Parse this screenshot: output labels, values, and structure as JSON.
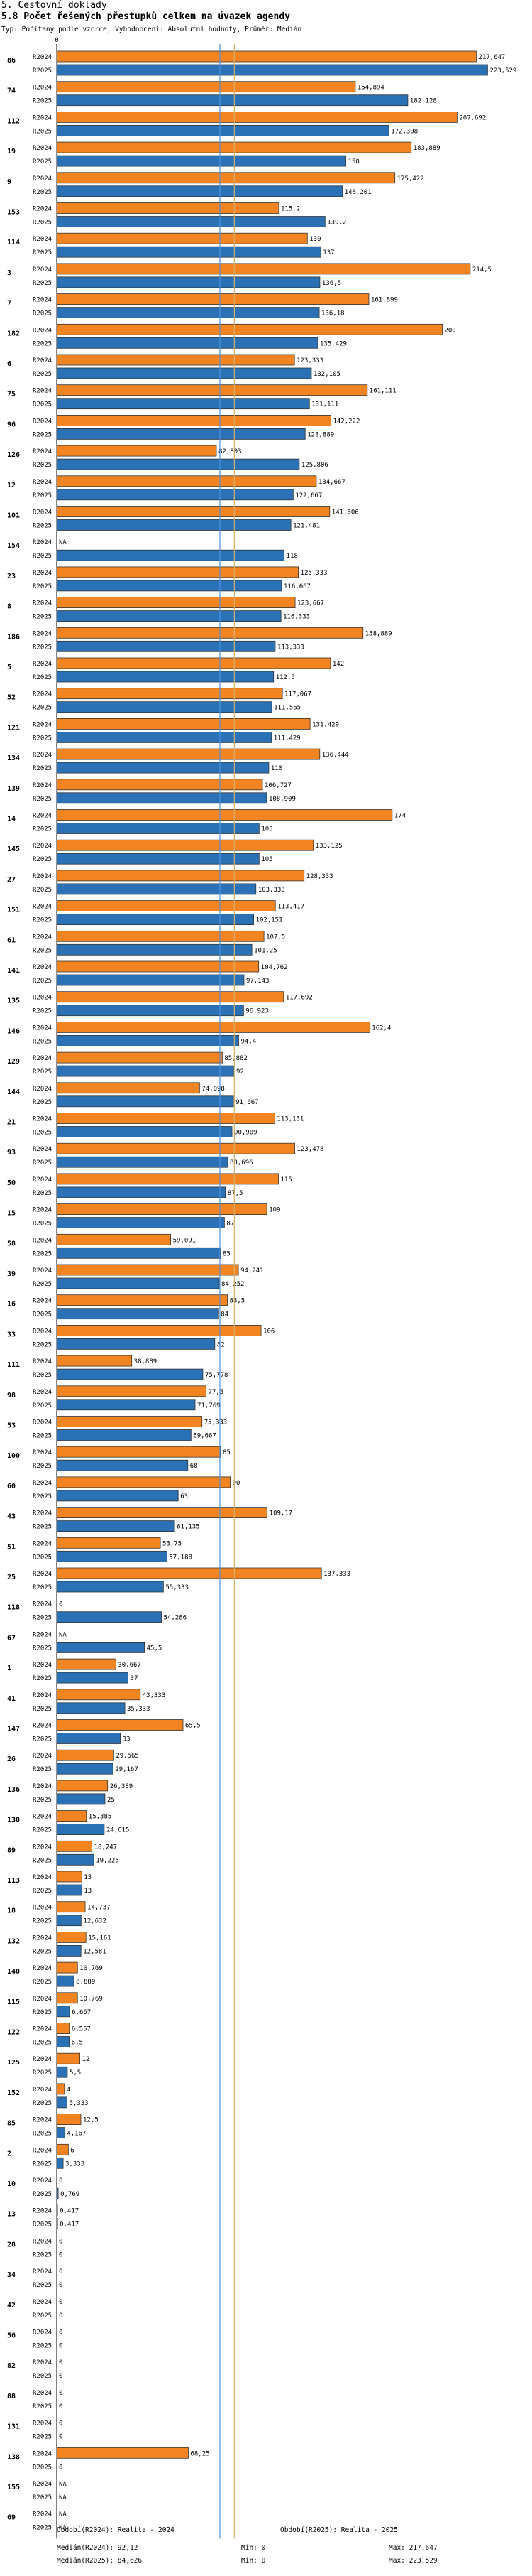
{
  "section_title": "5. Cestovní doklady",
  "chart_data": {
    "type": "bar",
    "orientation": "horizontal",
    "title": "5.8 Počet řešených přestupků celkem na úvazek agendy",
    "subtitle": "Typ: Počítaný podle vzorce, Vyhodnocení: Absolutní hodnoty, Průměr: Medián",
    "xlim": [
      0,
      230
    ],
    "x_ticks": [
      0
    ],
    "series": [
      {
        "name": "R2024",
        "color": "#f28522"
      },
      {
        "name": "R2025",
        "color": "#2a72b5"
      }
    ],
    "medians": {
      "R2024": 92.12,
      "R2025": 84.626
    },
    "median_colors": {
      "R2024": "#d4b06a",
      "R2025": "#4a90e2"
    },
    "rows": [
      {
        "id": "86",
        "R2024": 217.647,
        "R2025": 223.529,
        "l2024": "217,647",
        "l2025": "223,529"
      },
      {
        "id": "74",
        "R2024": 154.894,
        "R2025": 182.128,
        "l2024": "154,894",
        "l2025": "182,128"
      },
      {
        "id": "112",
        "R2024": 207.692,
        "R2025": 172.308,
        "l2024": "207,692",
        "l2025": "172,308"
      },
      {
        "id": "19",
        "R2024": 183.889,
        "R2025": 150,
        "l2024": "183,889",
        "l2025": "150"
      },
      {
        "id": "9",
        "R2024": 175.422,
        "R2025": 148.201,
        "l2024": "175,422",
        "l2025": "148,201"
      },
      {
        "id": "153",
        "R2024": 115.2,
        "R2025": 139.2,
        "l2024": "115,2",
        "l2025": "139,2"
      },
      {
        "id": "114",
        "R2024": 130,
        "R2025": 137,
        "l2024": "130",
        "l2025": "137"
      },
      {
        "id": "3",
        "R2024": 214.5,
        "R2025": 136.5,
        "l2024": "214,5",
        "l2025": "136,5"
      },
      {
        "id": "7",
        "R2024": 161.899,
        "R2025": 136.18,
        "l2024": "161,899",
        "l2025": "136,18"
      },
      {
        "id": "182",
        "R2024": 200,
        "R2025": 135.429,
        "l2024": "200",
        "l2025": "135,429"
      },
      {
        "id": "6",
        "R2024": 123.333,
        "R2025": 132.105,
        "l2024": "123,333",
        "l2025": "132,105"
      },
      {
        "id": "75",
        "R2024": 161.111,
        "R2025": 131.111,
        "l2024": "161,111",
        "l2025": "131,111"
      },
      {
        "id": "96",
        "R2024": 142.222,
        "R2025": 128.889,
        "l2024": "142,222",
        "l2025": "128,889"
      },
      {
        "id": "126",
        "R2024": 82.803,
        "R2025": 125.806,
        "l2024": "82,803",
        "l2025": "125,806"
      },
      {
        "id": "12",
        "R2024": 134.667,
        "R2025": 122.667,
        "l2024": "134,667",
        "l2025": "122,667"
      },
      {
        "id": "101",
        "R2024": 141.606,
        "R2025": 121.481,
        "l2024": "141,606",
        "l2025": "121,481"
      },
      {
        "id": "154",
        "R2024": null,
        "R2025": 118,
        "l2024": "NA",
        "l2025": "118"
      },
      {
        "id": "23",
        "R2024": 125.333,
        "R2025": 116.667,
        "l2024": "125,333",
        "l2025": "116,667"
      },
      {
        "id": "8",
        "R2024": 123.667,
        "R2025": 116.333,
        "l2024": "123,667",
        "l2025": "116,333"
      },
      {
        "id": "186",
        "R2024": 158.889,
        "R2025": 113.333,
        "l2024": "158,889",
        "l2025": "113,333"
      },
      {
        "id": "5",
        "R2024": 142,
        "R2025": 112.5,
        "l2024": "142",
        "l2025": "112,5"
      },
      {
        "id": "52",
        "R2024": 117.067,
        "R2025": 111.565,
        "l2024": "117,067",
        "l2025": "111,565"
      },
      {
        "id": "121",
        "R2024": 131.429,
        "R2025": 111.429,
        "l2024": "131,429",
        "l2025": "111,429"
      },
      {
        "id": "134",
        "R2024": 136.444,
        "R2025": 110,
        "l2024": "136,444",
        "l2025": "110"
      },
      {
        "id": "139",
        "R2024": 106.727,
        "R2025": 108.909,
        "l2024": "106,727",
        "l2025": "108,909"
      },
      {
        "id": "14",
        "R2024": 174,
        "R2025": 105,
        "l2024": "174",
        "l2025": "105"
      },
      {
        "id": "145",
        "R2024": 133.125,
        "R2025": 105,
        "l2024": "133,125",
        "l2025": "105"
      },
      {
        "id": "27",
        "R2024": 128.333,
        "R2025": 103.333,
        "l2024": "128,333",
        "l2025": "103,333"
      },
      {
        "id": "151",
        "R2024": 113.417,
        "R2025": 102.151,
        "l2024": "113,417",
        "l2025": "102,151"
      },
      {
        "id": "61",
        "R2024": 107.5,
        "R2025": 101.25,
        "l2024": "107,5",
        "l2025": "101,25"
      },
      {
        "id": "141",
        "R2024": 104.762,
        "R2025": 97.143,
        "l2024": "104,762",
        "l2025": "97,143"
      },
      {
        "id": "135",
        "R2024": 117.692,
        "R2025": 96.923,
        "l2024": "117,692",
        "l2025": "96,923"
      },
      {
        "id": "146",
        "R2024": 162.4,
        "R2025": 94.4,
        "l2024": "162,4",
        "l2025": "94,4"
      },
      {
        "id": "129",
        "R2024": 85.882,
        "R2025": 92,
        "l2024": "85,882",
        "l2025": "92"
      },
      {
        "id": "144",
        "R2024": 74.098,
        "R2025": 91.667,
        "l2024": "74,098",
        "l2025": "91,667"
      },
      {
        "id": "21",
        "R2024": 113.131,
        "R2025": 90.909,
        "l2024": "113,131",
        "l2025": "90,909"
      },
      {
        "id": "93",
        "R2024": 123.478,
        "R2025": 88.696,
        "l2024": "123,478",
        "l2025": "88,696"
      },
      {
        "id": "50",
        "R2024": 115,
        "R2025": 87.5,
        "l2024": "115",
        "l2025": "87,5"
      },
      {
        "id": "15",
        "R2024": 109,
        "R2025": 87,
        "l2024": "109",
        "l2025": "87"
      },
      {
        "id": "58",
        "R2024": 59.091,
        "R2025": 85,
        "l2024": "59,091",
        "l2025": "85"
      },
      {
        "id": "39",
        "R2024": 94.241,
        "R2025": 84.252,
        "l2024": "94,241",
        "l2025": "84,252"
      },
      {
        "id": "16",
        "R2024": 88.5,
        "R2025": 84,
        "l2024": "88,5",
        "l2025": "84"
      },
      {
        "id": "33",
        "R2024": 106,
        "R2025": 82,
        "l2024": "106",
        "l2025": "82"
      },
      {
        "id": "111",
        "R2024": 38.889,
        "R2025": 75.778,
        "l2024": "38,889",
        "l2025": "75,778"
      },
      {
        "id": "98",
        "R2024": 77.5,
        "R2025": 71.769,
        "l2024": "77,5",
        "l2025": "71,769"
      },
      {
        "id": "53",
        "R2024": 75.333,
        "R2025": 69.667,
        "l2024": "75,333",
        "l2025": "69,667"
      },
      {
        "id": "100",
        "R2024": 85,
        "R2025": 68,
        "l2024": "85",
        "l2025": "68"
      },
      {
        "id": "60",
        "R2024": 90,
        "R2025": 63,
        "l2024": "90",
        "l2025": "63"
      },
      {
        "id": "43",
        "R2024": 109.17,
        "R2025": 61.135,
        "l2024": "109,17",
        "l2025": "61,135"
      },
      {
        "id": "51",
        "R2024": 53.75,
        "R2025": 57.188,
        "l2024": "53,75",
        "l2025": "57,188"
      },
      {
        "id": "25",
        "R2024": 137.333,
        "R2025": 55.333,
        "l2024": "137,333",
        "l2025": "55,333"
      },
      {
        "id": "118",
        "R2024": 0,
        "R2025": 54.286,
        "l2024": "0",
        "l2025": "54,286"
      },
      {
        "id": "67",
        "R2024": null,
        "R2025": 45.5,
        "l2024": "NA",
        "l2025": "45,5"
      },
      {
        "id": "1",
        "R2024": 30.667,
        "R2025": 37,
        "l2024": "30,667",
        "l2025": "37"
      },
      {
        "id": "41",
        "R2024": 43.333,
        "R2025": 35.333,
        "l2024": "43,333",
        "l2025": "35,333"
      },
      {
        "id": "147",
        "R2024": 65.5,
        "R2025": 33,
        "l2024": "65,5",
        "l2025": "33"
      },
      {
        "id": "26",
        "R2024": 29.565,
        "R2025": 29.167,
        "l2024": "29,565",
        "l2025": "29,167"
      },
      {
        "id": "136",
        "R2024": 26.389,
        "R2025": 25,
        "l2024": "26,389",
        "l2025": "25"
      },
      {
        "id": "130",
        "R2024": 15.385,
        "R2025": 24.615,
        "l2024": "15,385",
        "l2025": "24,615"
      },
      {
        "id": "89",
        "R2024": 18.247,
        "R2025": 19.225,
        "l2024": "18,247",
        "l2025": "19,225"
      },
      {
        "id": "113",
        "R2024": 13,
        "R2025": 13,
        "l2024": "13",
        "l2025": "13"
      },
      {
        "id": "18",
        "R2024": 14.737,
        "R2025": 12.632,
        "l2024": "14,737",
        "l2025": "12,632"
      },
      {
        "id": "132",
        "R2024": 15.161,
        "R2025": 12.581,
        "l2024": "15,161",
        "l2025": "12,581"
      },
      {
        "id": "140",
        "R2024": 10.769,
        "R2025": 8.889,
        "l2024": "10,769",
        "l2025": "8,889"
      },
      {
        "id": "115",
        "R2024": 10.769,
        "R2025": 6.667,
        "l2024": "10,769",
        "l2025": "6,667"
      },
      {
        "id": "122",
        "R2024": 6.557,
        "R2025": 6.5,
        "l2024": "6,557",
        "l2025": "6,5"
      },
      {
        "id": "125",
        "R2024": 12,
        "R2025": 5.5,
        "l2024": "12",
        "l2025": "5,5"
      },
      {
        "id": "152",
        "R2024": 4,
        "R2025": 5.333,
        "l2024": "4",
        "l2025": "5,333"
      },
      {
        "id": "85",
        "R2024": 12.5,
        "R2025": 4.167,
        "l2024": "12,5",
        "l2025": "4,167"
      },
      {
        "id": "2",
        "R2024": 6,
        "R2025": 3.333,
        "l2024": "6",
        "l2025": "3,333"
      },
      {
        "id": "10",
        "R2024": 0,
        "R2025": 0.769,
        "l2024": "0",
        "l2025": "0,769"
      },
      {
        "id": "13",
        "R2024": 0.417,
        "R2025": 0.417,
        "l2024": "0,417",
        "l2025": "0,417"
      },
      {
        "id": "28",
        "R2024": 0,
        "R2025": 0,
        "l2024": "0",
        "l2025": "0"
      },
      {
        "id": "34",
        "R2024": 0,
        "R2025": 0,
        "l2024": "0",
        "l2025": "0"
      },
      {
        "id": "42",
        "R2024": 0,
        "R2025": 0,
        "l2024": "0",
        "l2025": "0"
      },
      {
        "id": "56",
        "R2024": 0,
        "R2025": 0,
        "l2024": "0",
        "l2025": "0"
      },
      {
        "id": "82",
        "R2024": 0,
        "R2025": 0,
        "l2024": "0",
        "l2025": "0"
      },
      {
        "id": "88",
        "R2024": 0,
        "R2025": 0,
        "l2024": "0",
        "l2025": "0"
      },
      {
        "id": "131",
        "R2024": 0,
        "R2025": 0,
        "l2024": "0",
        "l2025": "0"
      },
      {
        "id": "138",
        "R2024": 68.25,
        "R2025": 0,
        "l2024": "68,25",
        "l2025": "0"
      },
      {
        "id": "155",
        "R2024": null,
        "R2025": null,
        "l2024": "NA",
        "l2025": "NA"
      },
      {
        "id": "69",
        "R2024": null,
        "R2025": null,
        "l2024": "NA",
        "l2025": "NA"
      }
    ]
  },
  "footer": {
    "left_period": "Období(R2024): Realita - 2024",
    "right_period": "Období(R2025): Realita - 2025",
    "median_2024": "Medián(R2024): 92,12",
    "min_2024": "Min: 0",
    "max_2024": "Max: 217,647",
    "median_2025": "Medián(R2025): 84,626",
    "min_2025": "Min: 0",
    "max_2025": "Max: 223,529"
  }
}
